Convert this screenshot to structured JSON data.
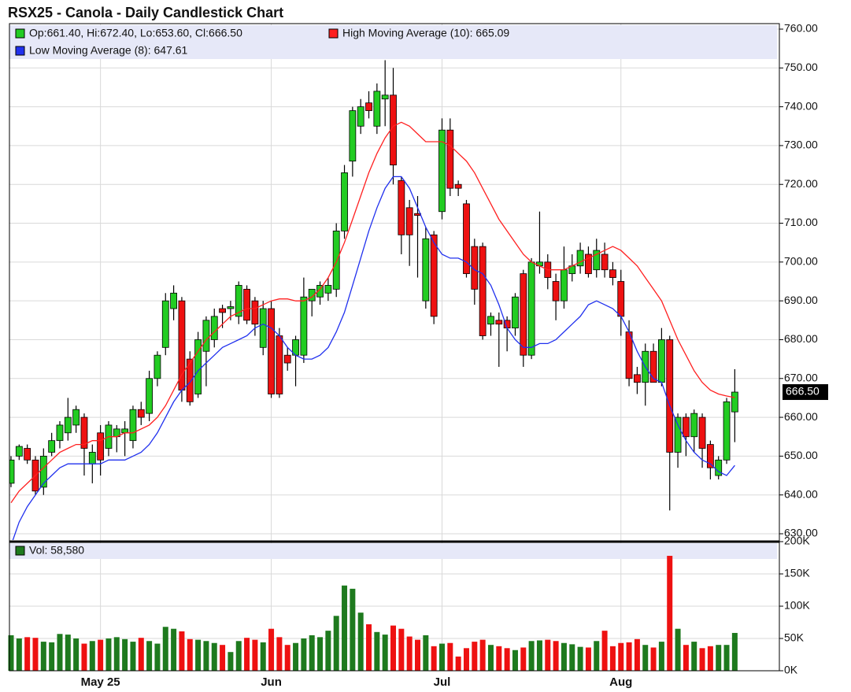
{
  "chart_data": {
    "type": "candlestick",
    "title": "RSX25 - Canola - Daily Candlestick Chart",
    "categories": [
      null,
      null,
      null,
      null,
      null,
      null,
      null,
      null,
      null,
      null,
      null,
      "May 25",
      null,
      null,
      null,
      null,
      null,
      null,
      null,
      null,
      null,
      null,
      null,
      null,
      null,
      null,
      null,
      null,
      null,
      null,
      null,
      null,
      "Jun",
      null,
      null,
      null,
      null,
      null,
      null,
      null,
      null,
      null,
      null,
      null,
      null,
      null,
      null,
      null,
      null,
      null,
      null,
      null,
      null,
      "Jul",
      null,
      null,
      null,
      null,
      null,
      null,
      null,
      null,
      null,
      null,
      null,
      null,
      null,
      null,
      null,
      null,
      null,
      null,
      null,
      null,
      null,
      "Aug",
      null,
      null,
      null,
      null,
      null,
      null,
      null,
      null,
      null,
      null,
      null,
      null,
      null,
      null
    ],
    "open": [
      643,
      650,
      652,
      649,
      642,
      651,
      654,
      656,
      658,
      660,
      648,
      656,
      652,
      655,
      656,
      654,
      662,
      661,
      670,
      678,
      688,
      690,
      675,
      666,
      677,
      680,
      688,
      688,
      686,
      693,
      690,
      678,
      688,
      681,
      676,
      676,
      676,
      690,
      691,
      692,
      693,
      708,
      726,
      735,
      741,
      735,
      742,
      743,
      721,
      714,
      712.5,
      690,
      707,
      713,
      734,
      720,
      715,
      704,
      704,
      684,
      685,
      685,
      683,
      697,
      676,
      699,
      700,
      695,
      690,
      697,
      699,
      702,
      698,
      702,
      698,
      695,
      682,
      671,
      669,
      677,
      669,
      680,
      651,
      660,
      655,
      660,
      653,
      645,
      649,
      661.4
    ],
    "high": [
      650,
      653,
      653,
      650,
      652,
      656,
      659,
      665,
      663,
      661,
      653,
      658,
      659,
      658,
      659,
      663,
      664,
      672,
      677,
      692,
      694,
      691,
      677,
      682,
      686,
      688,
      689,
      690,
      695,
      694,
      691,
      690,
      690,
      683,
      678,
      681,
      696,
      693,
      695,
      696,
      710,
      725,
      740,
      742,
      744,
      746,
      752,
      750,
      722,
      716,
      717,
      709,
      708,
      737,
      737,
      721,
      716,
      706,
      705,
      687,
      687,
      686,
      692,
      698,
      701,
      713,
      702,
      697,
      704,
      702,
      705,
      704,
      706,
      705,
      700,
      698,
      685,
      673,
      679,
      679,
      683,
      681,
      661,
      661,
      662,
      661,
      654,
      650,
      665,
      672.4
    ],
    "low": [
      642,
      649,
      648,
      640,
      640,
      650,
      652,
      654,
      656,
      645,
      643,
      645,
      650,
      651,
      650,
      652,
      658,
      659,
      668,
      676,
      685,
      664,
      663,
      665,
      668,
      678,
      683,
      685,
      684,
      684,
      681,
      676,
      665,
      665,
      672,
      668,
      674,
      686,
      689,
      690,
      691,
      706,
      722,
      733,
      737,
      733,
      735,
      720,
      702,
      699,
      696,
      688,
      684,
      711,
      717,
      717,
      696,
      689,
      680,
      681,
      673,
      677,
      681,
      673,
      675,
      697,
      693,
      685,
      688,
      695,
      697,
      696,
      696,
      696,
      694,
      681,
      668,
      666,
      663,
      669,
      668,
      636,
      647,
      650,
      651,
      647,
      644,
      644,
      648,
      653.6
    ],
    "close": [
      649,
      652.5,
      649,
      641,
      650,
      654,
      658,
      660,
      662,
      652,
      651,
      649,
      658,
      657,
      657,
      662,
      660,
      670,
      676,
      690,
      692,
      667,
      664,
      680,
      685,
      686,
      687,
      688.5,
      694,
      685,
      684,
      688,
      666,
      666,
      674,
      680,
      691,
      693,
      694,
      694,
      708,
      723,
      739,
      740,
      739,
      744,
      743,
      725,
      707,
      707,
      712,
      706,
      686,
      734,
      719,
      719,
      697,
      693,
      681,
      686,
      684,
      683,
      691,
      676,
      700,
      700,
      696,
      690,
      698,
      699,
      703,
      697,
      703,
      698,
      696,
      686,
      670,
      669,
      677,
      669,
      680,
      651,
      660,
      655,
      661,
      652,
      647,
      649,
      664,
      666.5
    ],
    "ohlc_legend": "Op:661.40, Hi:672.40, Lo:653.60, Cl:666.50",
    "up_color": "#22cc22",
    "down_color": "#ee1111",
    "last_label": "666.50",
    "series": [
      {
        "name": "High Moving Average (10): 665.09",
        "color": "#ff2020",
        "values": [
          638,
          641,
          643,
          645,
          647,
          649,
          651,
          652,
          653,
          653,
          654,
          654,
          655,
          655,
          656,
          656,
          657,
          658,
          660,
          663,
          667,
          671,
          674,
          677,
          680,
          682,
          684,
          686,
          687,
          688,
          688,
          689,
          690,
          690.5,
          690.5,
          690,
          690,
          691,
          693,
          696,
          700,
          705,
          711,
          717,
          723,
          728,
          732,
          735,
          736,
          735,
          733,
          731,
          731,
          731,
          730,
          728,
          726,
          723,
          719,
          715,
          711,
          708,
          705,
          702,
          700,
          699,
          698,
          698,
          698,
          699,
          700,
          701,
          702,
          703,
          704,
          703,
          701,
          699,
          696,
          693,
          690,
          685,
          680,
          676,
          672,
          669,
          667,
          666,
          665.5,
          665.09
        ]
      },
      {
        "name": "Low Moving Average (8): 647.61",
        "color": "#2030ee",
        "values": [
          627,
          633,
          637,
          640,
          643,
          645,
          647,
          648,
          648,
          648,
          648,
          648,
          649,
          649,
          649,
          650,
          651,
          653,
          656,
          660,
          664,
          667,
          669,
          672,
          674,
          676,
          678,
          679,
          680,
          681,
          683,
          684,
          683,
          681,
          678,
          676,
          675,
          675,
          676,
          678,
          682,
          687,
          694,
          701,
          708,
          714,
          719,
          722,
          722,
          719,
          714,
          709,
          705,
          702,
          701,
          701,
          700,
          698,
          697,
          694,
          689,
          683,
          680,
          678,
          678,
          679,
          679,
          680,
          682,
          684,
          686,
          689,
          690,
          689,
          688,
          686,
          682,
          677,
          673,
          670,
          669,
          663,
          658,
          654,
          651,
          649,
          648,
          646,
          645,
          647.61
        ]
      }
    ],
    "ylim": [
      630,
      760
    ],
    "yticks": [
      {
        "value": 630,
        "label": "630.00"
      },
      {
        "value": 640,
        "label": "640.00"
      },
      {
        "value": 650,
        "label": "650.00"
      },
      {
        "value": 660,
        "label": "660.00"
      },
      {
        "value": 670,
        "label": "670.00"
      },
      {
        "value": 680,
        "label": "680.00"
      },
      {
        "value": 690,
        "label": "690.00"
      },
      {
        "value": 700,
        "label": "700.00"
      },
      {
        "value": 710,
        "label": "710.00"
      },
      {
        "value": 720,
        "label": "720.00"
      },
      {
        "value": 730,
        "label": "730.00"
      },
      {
        "value": 740,
        "label": "740.00"
      },
      {
        "value": 750,
        "label": "750.00"
      },
      {
        "value": 760,
        "label": "760.00"
      }
    ],
    "grid": true,
    "volume": {
      "name": "Vol: 58,580",
      "color": "#1e7a1e",
      "down_color": "#ee1111",
      "values": [
        55000,
        50000,
        52000,
        51000,
        45000,
        44000,
        57000,
        56000,
        50000,
        42000,
        46000,
        48000,
        50000,
        52000,
        49000,
        45000,
        51000,
        46000,
        42000,
        68000,
        65000,
        61000,
        49000,
        48000,
        46000,
        43000,
        40000,
        29000,
        46000,
        51000,
        48000,
        44000,
        65000,
        52000,
        40000,
        43000,
        50000,
        55000,
        52000,
        62000,
        85000,
        132000,
        127000,
        90000,
        72000,
        60000,
        56000,
        70000,
        65000,
        53000,
        48000,
        55000,
        38000,
        42000,
        43000,
        22000,
        35000,
        45000,
        48000,
        40000,
        38000,
        35000,
        32000,
        36000,
        46000,
        47000,
        48000,
        46000,
        43000,
        41000,
        37000,
        36000,
        46000,
        62000,
        38000,
        43000,
        44000,
        49000,
        40000,
        36000,
        45000,
        178000,
        65000,
        40000,
        45000,
        35000,
        38000,
        40000,
        40000,
        58580
      ],
      "ylim": [
        0,
        200000
      ],
      "yticks": [
        {
          "value": 0,
          "label": "0K"
        },
        {
          "value": 50000,
          "label": "50K"
        },
        {
          "value": 100000,
          "label": "100K"
        },
        {
          "value": 150000,
          "label": "150K"
        },
        {
          "value": 200000,
          "label": "200K"
        }
      ]
    }
  }
}
